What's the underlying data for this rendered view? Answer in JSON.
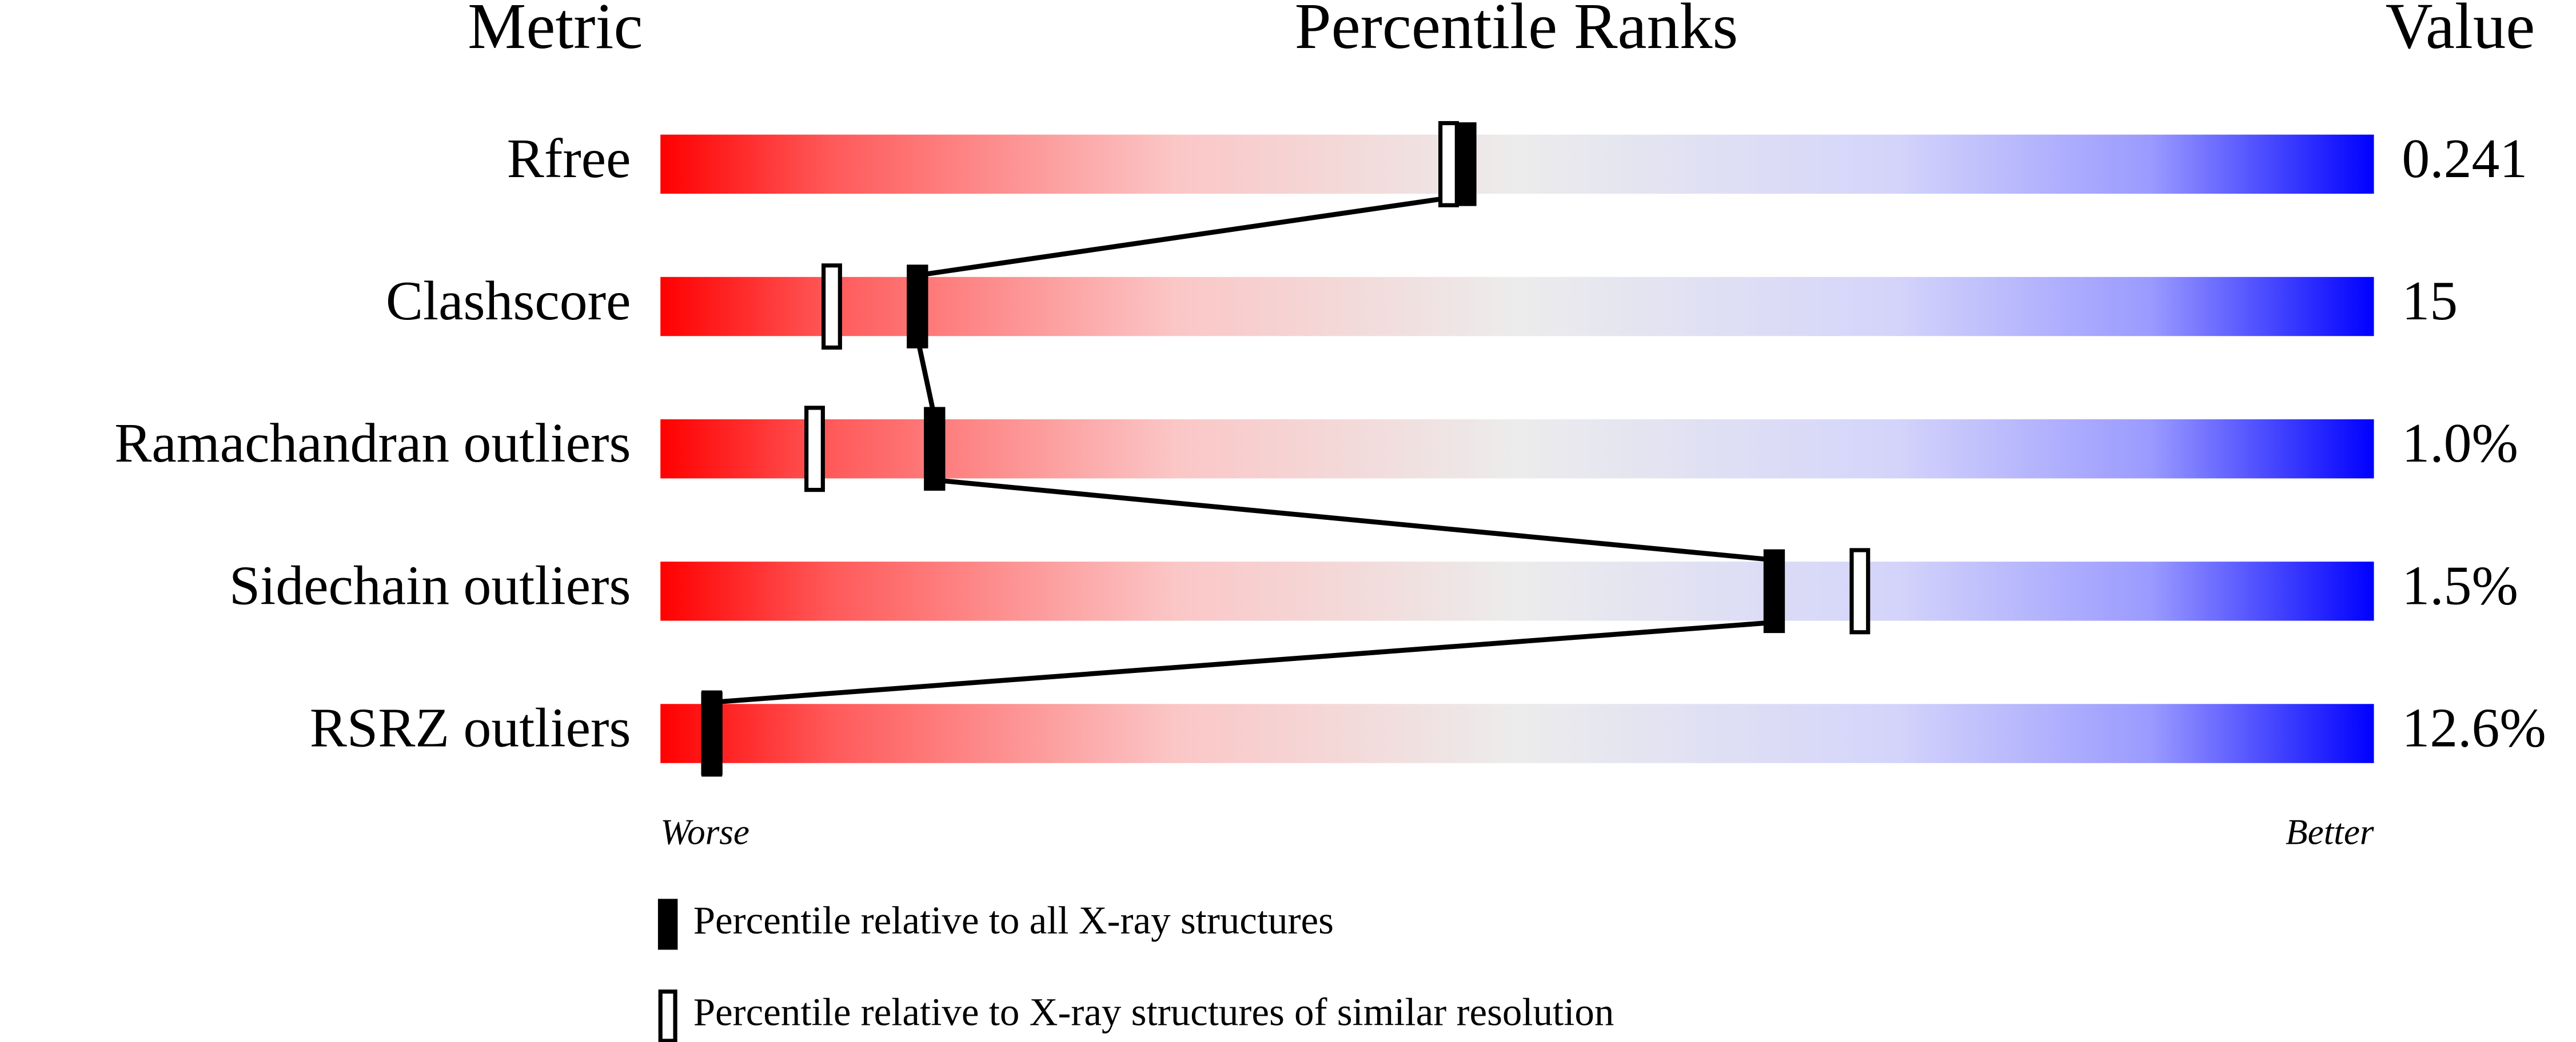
{
  "chart_data": {
    "type": "percentile",
    "column_headers": [
      "Metric",
      "Percentile Ranks",
      "Value"
    ],
    "categories": [
      "Rfree",
      "Clashscore",
      "Ramachandran outliers",
      "Sidechain outliers",
      "RSRZ outliers"
    ],
    "metric_values": [
      "0.241",
      "15",
      "1.0%",
      "1.5%",
      "12.6%"
    ],
    "xlim": [
      0,
      100
    ],
    "axis_ends": [
      "Worse",
      "Better"
    ],
    "series": [
      {
        "name": "Percentile relative to all X-ray structures",
        "color": "#000000",
        "style": "filled",
        "values": [
          47,
          15,
          16,
          65,
          3
        ]
      },
      {
        "name": "Percentile relative to X-ray structures of similar resolution",
        "color": "#000000",
        "style": "open",
        "values": [
          46,
          10,
          9,
          70,
          3
        ]
      }
    ]
  }
}
